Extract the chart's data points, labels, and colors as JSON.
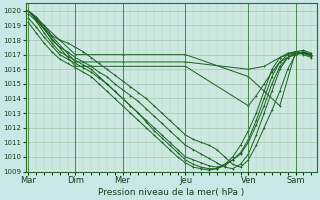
{
  "xlabel": "Pression niveau de la mer( hPa )",
  "bg_color": "#c8e8e8",
  "plot_bg_color": "#cce8e0",
  "grid_major_color": "#a0bfa8",
  "grid_minor_color": "#b8d8c8",
  "line_color": "#1a6020",
  "ylim": [
    1009,
    1020.5
  ],
  "ytick_min": 1009,
  "ytick_max": 1020,
  "xlim_min": -2,
  "xlim_max": 220,
  "day_labels": [
    "Mar",
    "Dim",
    "Mer",
    "Jeu",
    "Ven",
    "Sam"
  ],
  "day_positions": [
    0,
    36,
    72,
    120,
    168,
    204
  ],
  "vline_positions": [
    0,
    36,
    72,
    120,
    168,
    204
  ],
  "lines": [
    {
      "x": [
        0,
        6,
        12,
        18,
        24,
        30,
        36,
        42,
        48,
        54,
        60,
        66,
        72,
        78,
        84,
        90,
        96,
        102,
        108,
        114,
        120,
        126,
        132,
        138,
        144,
        150,
        156,
        162,
        168,
        174,
        180,
        186,
        192,
        198,
        204,
        210,
        216
      ],
      "y": [
        1020.0,
        1019.6,
        1019.0,
        1018.3,
        1018.0,
        1017.8,
        1017.5,
        1017.2,
        1016.8,
        1016.4,
        1016.0,
        1015.6,
        1015.2,
        1014.8,
        1014.4,
        1014.0,
        1013.5,
        1013.0,
        1012.5,
        1012.0,
        1011.5,
        1011.2,
        1011.0,
        1010.8,
        1010.5,
        1010.0,
        1009.5,
        1009.3,
        1009.8,
        1010.8,
        1012.0,
        1013.2,
        1014.5,
        1016.0,
        1017.0,
        1017.2,
        1017.0
      ]
    },
    {
      "x": [
        0,
        6,
        12,
        18,
        24,
        30,
        36,
        42,
        48,
        54,
        60,
        66,
        72,
        78,
        84,
        90,
        96,
        102,
        108,
        114,
        120,
        126,
        132,
        138,
        144,
        150,
        156,
        162,
        168,
        174,
        180,
        186,
        192,
        198,
        204,
        210,
        216
      ],
      "y": [
        1020.0,
        1019.5,
        1018.8,
        1018.0,
        1017.5,
        1017.2,
        1016.8,
        1016.5,
        1016.2,
        1015.8,
        1015.5,
        1015.0,
        1014.6,
        1014.2,
        1013.8,
        1013.3,
        1012.8,
        1012.3,
        1011.8,
        1011.3,
        1010.8,
        1010.5,
        1010.2,
        1009.9,
        1009.6,
        1009.3,
        1009.2,
        1009.5,
        1010.2,
        1011.5,
        1013.0,
        1014.5,
        1016.0,
        1016.8,
        1017.2,
        1017.3,
        1017.1
      ]
    },
    {
      "x": [
        0,
        6,
        12,
        18,
        24,
        30,
        36,
        42,
        48,
        54,
        60,
        66,
        72,
        78,
        84,
        90,
        96,
        102,
        108,
        114,
        120,
        126,
        132,
        138,
        144,
        150,
        156,
        162,
        168,
        174,
        180,
        186,
        192,
        198,
        204,
        210,
        216
      ],
      "y": [
        1019.8,
        1019.3,
        1018.5,
        1017.8,
        1017.2,
        1016.9,
        1016.6,
        1016.3,
        1016.0,
        1015.5,
        1015.0,
        1014.5,
        1014.0,
        1013.5,
        1013.0,
        1012.5,
        1012.0,
        1011.5,
        1011.0,
        1010.5,
        1010.0,
        1009.8,
        1009.6,
        1009.4,
        1009.3,
        1009.5,
        1009.8,
        1010.2,
        1011.0,
        1012.2,
        1013.5,
        1015.0,
        1016.2,
        1016.8,
        1017.1,
        1017.2,
        1017.0
      ]
    },
    {
      "x": [
        0,
        6,
        12,
        18,
        24,
        30,
        36,
        42,
        48,
        54,
        60,
        66,
        72,
        78,
        84,
        90,
        96,
        102,
        108,
        114,
        120,
        126,
        132,
        138,
        144,
        150,
        156,
        162,
        168,
        174,
        180,
        186,
        192,
        198,
        204,
        210,
        216
      ],
      "y": [
        1019.5,
        1018.9,
        1018.2,
        1017.6,
        1017.0,
        1016.7,
        1016.4,
        1016.1,
        1015.8,
        1015.4,
        1015.0,
        1014.5,
        1014.0,
        1013.5,
        1013.0,
        1012.4,
        1011.8,
        1011.3,
        1010.8,
        1010.3,
        1009.8,
        1009.5,
        1009.3,
        1009.2,
        1009.2,
        1009.4,
        1009.8,
        1010.3,
        1011.2,
        1012.5,
        1014.0,
        1015.5,
        1016.5,
        1017.0,
        1017.2,
        1017.1,
        1016.9
      ]
    },
    {
      "x": [
        0,
        6,
        12,
        18,
        24,
        30,
        36,
        42,
        48,
        54,
        60,
        66,
        72,
        78,
        84,
        90,
        96,
        102,
        108,
        114,
        120,
        126,
        132,
        138,
        144,
        150,
        156,
        162,
        168,
        174,
        180,
        186,
        192,
        198,
        204,
        210,
        216
      ],
      "y": [
        1019.2,
        1018.5,
        1017.8,
        1017.2,
        1016.7,
        1016.4,
        1016.1,
        1015.8,
        1015.5,
        1015.0,
        1014.5,
        1014.0,
        1013.5,
        1013.0,
        1012.5,
        1012.0,
        1011.5,
        1011.0,
        1010.5,
        1010.0,
        1009.6,
        1009.3,
        1009.2,
        1009.1,
        1009.2,
        1009.5,
        1010.0,
        1010.8,
        1011.8,
        1013.0,
        1014.5,
        1016.0,
        1016.8,
        1017.1,
        1017.2,
        1017.0,
        1016.8
      ]
    },
    {
      "x": [
        0,
        36,
        72,
        120,
        168,
        192,
        204,
        216
      ],
      "y": [
        1020.0,
        1017.0,
        1017.0,
        1017.0,
        1015.5,
        1013.5,
        1017.2,
        1017.0
      ]
    },
    {
      "x": [
        0,
        36,
        72,
        120,
        168,
        180,
        192,
        204,
        216
      ],
      "y": [
        1020.0,
        1016.5,
        1016.5,
        1016.5,
        1016.0,
        1016.2,
        1016.8,
        1017.2,
        1017.0
      ]
    },
    {
      "x": [
        0,
        36,
        72,
        120,
        168,
        174,
        180,
        186,
        192,
        198,
        204,
        210,
        216
      ],
      "y": [
        1020.0,
        1016.2,
        1016.2,
        1016.2,
        1013.5,
        1014.2,
        1015.0,
        1015.8,
        1016.5,
        1016.8,
        1017.0,
        1017.1,
        1016.9
      ]
    }
  ]
}
